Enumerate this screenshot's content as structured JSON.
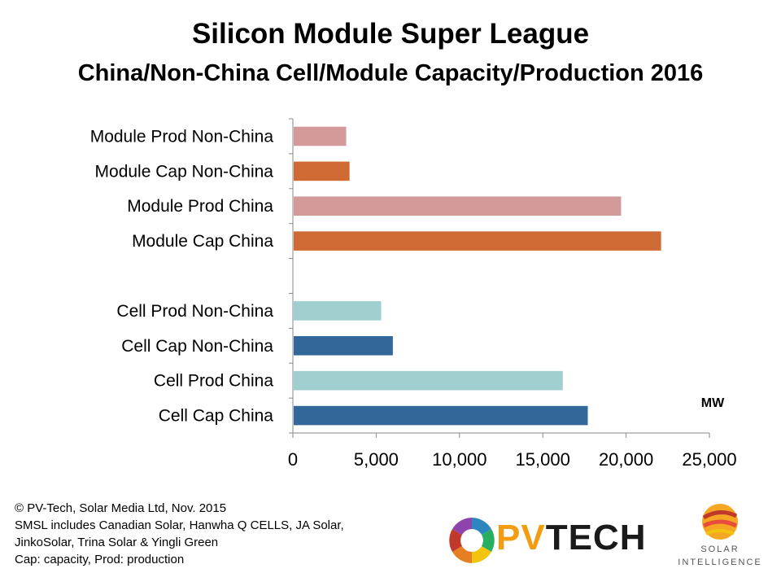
{
  "chart_data": {
    "type": "bar",
    "orientation": "horizontal",
    "title": "Silicon Module Super League",
    "subtitle": "China/Non-China Cell/Module Capacity/Production 2016",
    "unit_label": "MW",
    "xlim": [
      0,
      25000
    ],
    "x_ticks": [
      "0",
      "5,000",
      "10,000",
      "15,000",
      "20,000",
      "25,000"
    ],
    "grid": false,
    "categories": [
      "Module Prod Non-China",
      "Module Cap Non-China",
      "Module Prod China",
      "Module Cap China",
      "",
      "Cell Prod Non-China",
      "Cell Cap Non-China",
      "Cell Prod China",
      "Cell Cap China"
    ],
    "values": [
      3200,
      3400,
      19700,
      22100,
      null,
      5300,
      6000,
      16200,
      17700
    ],
    "bar_colors": [
      "#d49a9a",
      "#cf6a34",
      "#d49a9a",
      "#cf6a34",
      null,
      "#9fcfcf",
      "#336699",
      "#9fcfcf",
      "#336699"
    ]
  },
  "footnotes": [
    "© PV-Tech, Solar Media Ltd, Nov. 2015",
    "SMSL includes Canadian Solar, Hanwha Q CELLS, JA Solar,",
    "JinkoSolar, Trina Solar & Yingli Green",
    "Cap: capacity, Prod: production"
  ],
  "logos": {
    "pvtech": {
      "pv": "PV",
      "tech": "TECH"
    },
    "solar_intelligence": {
      "line1": "SOLAR",
      "line2": "INTELLIGENCE"
    }
  }
}
